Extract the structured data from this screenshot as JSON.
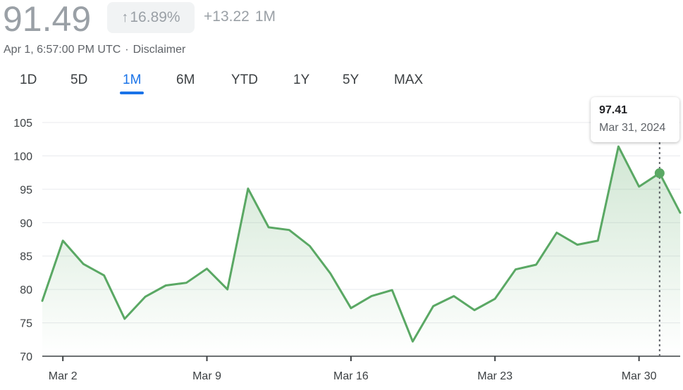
{
  "header": {
    "price": "91.49",
    "percent_change": "16.89%",
    "abs_change": "+13.22",
    "period": "1M",
    "timestamp": "Apr 1, 6:57:00 PM UTC",
    "separator": "·",
    "disclaimer": "Disclaimer"
  },
  "tabs": [
    {
      "label": "1D",
      "active": false
    },
    {
      "label": "5D",
      "active": false
    },
    {
      "label": "1M",
      "active": true
    },
    {
      "label": "6M",
      "active": false
    },
    {
      "label": "YTD",
      "active": false
    },
    {
      "label": "1Y",
      "active": false
    },
    {
      "label": "5Y",
      "active": false
    },
    {
      "label": "MAX",
      "active": false
    }
  ],
  "tooltip": {
    "price": "97.41",
    "date": "Mar 31, 2024"
  },
  "colors": {
    "line": "#5aa864",
    "accent": "#1a73e8",
    "grid": "#e8eaed"
  },
  "chart_data": {
    "type": "area",
    "xlabel": "",
    "ylabel": "",
    "ylim": [
      70,
      105
    ],
    "yticks": [
      70,
      75,
      80,
      85,
      90,
      95,
      100,
      105
    ],
    "xlim": [
      "2024-03-01",
      "2024-04-01"
    ],
    "xticks": [
      {
        "label": "Mar 2",
        "date": "2024-03-02"
      },
      {
        "label": "Mar 9",
        "date": "2024-03-09"
      },
      {
        "label": "Mar 16",
        "date": "2024-03-16"
      },
      {
        "label": "Mar 23",
        "date": "2024-03-23"
      },
      {
        "label": "Mar 30",
        "date": "2024-03-30"
      }
    ],
    "grid": true,
    "series": [
      {
        "points": [
          {
            "date": "2024-03-01",
            "value": 78.3
          },
          {
            "date": "2024-03-02",
            "value": 87.3
          },
          {
            "date": "2024-03-03",
            "value": 83.8
          },
          {
            "date": "2024-03-04",
            "value": 82.1
          },
          {
            "date": "2024-03-05",
            "value": 75.6
          },
          {
            "date": "2024-03-06",
            "value": 78.9
          },
          {
            "date": "2024-03-07",
            "value": 80.6
          },
          {
            "date": "2024-03-08",
            "value": 81.0
          },
          {
            "date": "2024-03-09",
            "value": 83.1
          },
          {
            "date": "2024-03-10",
            "value": 80.0
          },
          {
            "date": "2024-03-11",
            "value": 95.1
          },
          {
            "date": "2024-03-12",
            "value": 89.3
          },
          {
            "date": "2024-03-13",
            "value": 88.9
          },
          {
            "date": "2024-03-14",
            "value": 86.5
          },
          {
            "date": "2024-03-15",
            "value": 82.4
          },
          {
            "date": "2024-03-16",
            "value": 77.2
          },
          {
            "date": "2024-03-17",
            "value": 79.0
          },
          {
            "date": "2024-03-18",
            "value": 79.9
          },
          {
            "date": "2024-03-19",
            "value": 72.2
          },
          {
            "date": "2024-03-20",
            "value": 77.5
          },
          {
            "date": "2024-03-21",
            "value": 79.0
          },
          {
            "date": "2024-03-22",
            "value": 76.9
          },
          {
            "date": "2024-03-23",
            "value": 78.6
          },
          {
            "date": "2024-03-24",
            "value": 83.0
          },
          {
            "date": "2024-03-25",
            "value": 83.7
          },
          {
            "date": "2024-03-26",
            "value": 88.5
          },
          {
            "date": "2024-03-27",
            "value": 86.7
          },
          {
            "date": "2024-03-28",
            "value": 87.3
          },
          {
            "date": "2024-03-29",
            "value": 101.4
          },
          {
            "date": "2024-03-30",
            "value": 95.4
          },
          {
            "date": "2024-03-31",
            "value": 97.41
          },
          {
            "date": "2024-04-01",
            "value": 91.49
          }
        ]
      }
    ],
    "highlight": {
      "date": "2024-03-31",
      "value": 97.41
    }
  }
}
